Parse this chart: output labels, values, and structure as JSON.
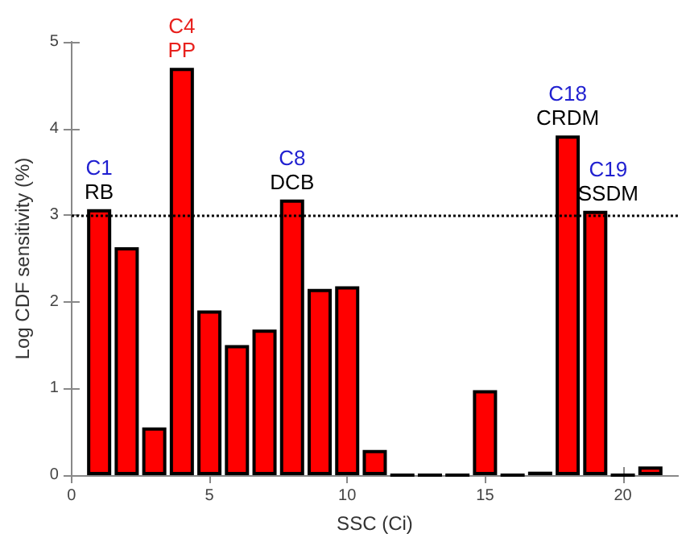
{
  "chart_data": {
    "type": "bar",
    "xlabel": "SSC (Ci)",
    "ylabel": "Log CDF sensitivity (%)",
    "x": [
      1,
      2,
      3,
      4,
      5,
      6,
      7,
      8,
      9,
      10,
      11,
      12,
      13,
      14,
      15,
      16,
      17,
      18,
      19,
      20,
      21
    ],
    "values": [
      3.07,
      2.63,
      0.55,
      4.7,
      1.9,
      1.5,
      1.68,
      3.18,
      2.15,
      2.18,
      0.29,
      0,
      0,
      0,
      0.98,
      0,
      0.04,
      3.92,
      3.05,
      0,
      0.1
    ],
    "colors": [
      "#ff0000",
      "#ff0000",
      "#ff0000",
      "#ff0000",
      "#ff0000",
      "#ff0000",
      "#ff0000",
      "#ff0000",
      "#ff0000",
      "#ff0000",
      "#ff0000",
      "#000000",
      "#000000",
      "#000000",
      "#ff0000",
      "#000000",
      "#ff0000",
      "#ff0000",
      "#ff0000",
      "#000000",
      "#ff0000"
    ],
    "xlim": [
      0,
      22
    ],
    "xticks": [
      0,
      5,
      10,
      15,
      20
    ],
    "ylim": [
      0,
      5
    ],
    "yticks": [
      0,
      1,
      2,
      3,
      4,
      5
    ],
    "grid": false,
    "ref_lines": [
      {
        "axis": "y",
        "value": 3,
        "line_style": "dotted",
        "color": "#000000"
      }
    ],
    "annotations": [
      {
        "text": "C1",
        "x": 1,
        "y": 3.07
      },
      {
        "text": "RB",
        "x": 1,
        "y": 3.07
      },
      {
        "text": "C4",
        "x": 4,
        "y": 4.7
      },
      {
        "text": "PP",
        "x": 4,
        "y": 4.7
      },
      {
        "text": "C8",
        "x": 8,
        "y": 3.18
      },
      {
        "text": "DCB",
        "x": 8,
        "y": 3.18
      },
      {
        "text": "C18",
        "x": 18,
        "y": 3.92
      },
      {
        "text": "CRDM",
        "x": 18,
        "y": 3.92
      },
      {
        "text": "C19",
        "x": 19,
        "y": 3.05
      },
      {
        "text": "SSDM",
        "x": 19,
        "y": 3.05
      }
    ]
  }
}
